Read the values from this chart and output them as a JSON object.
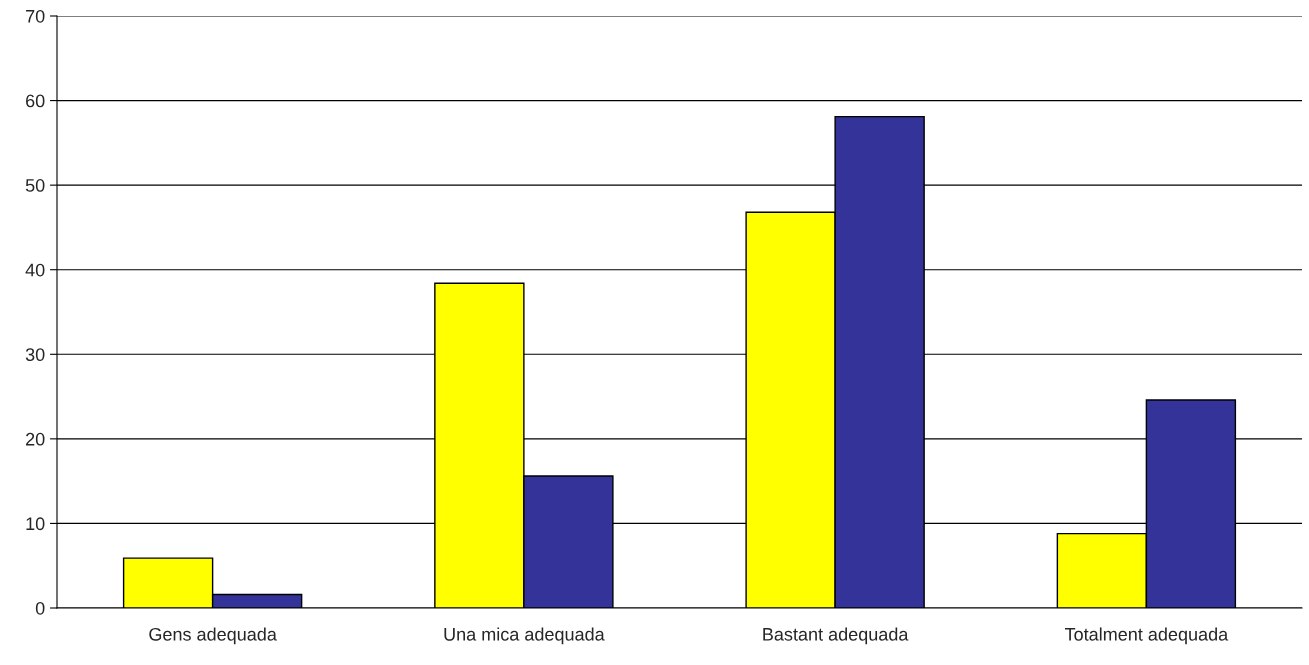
{
  "chart_data": {
    "type": "bar",
    "categories": [
      "Gens adequada",
      "Una mica adequada",
      "Bastant adequada",
      "Totalment adequada"
    ],
    "series": [
      {
        "color": "#ffff00",
        "values": [
          5.9,
          38.4,
          46.8,
          8.8
        ]
      },
      {
        "color": "#333399",
        "values": [
          1.6,
          15.6,
          58.1,
          24.6
        ]
      }
    ],
    "ylim": [
      0,
      70
    ],
    "yticks": [
      0,
      10,
      20,
      30,
      40,
      50,
      60,
      70
    ],
    "grid": "y"
  }
}
